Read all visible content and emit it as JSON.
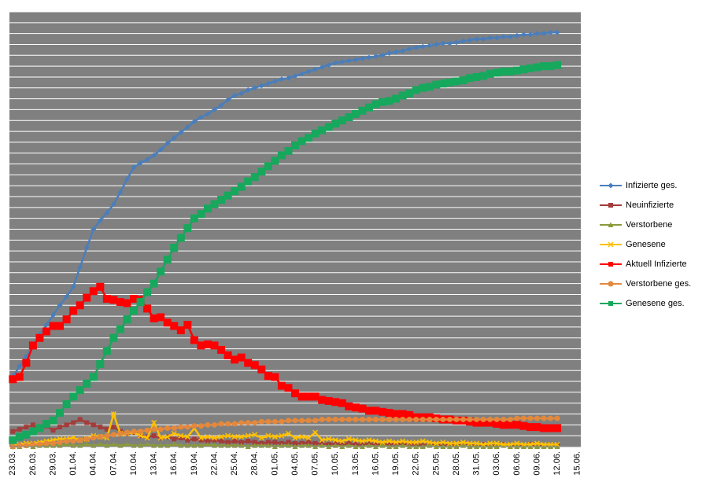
{
  "chart_data": {
    "type": "line",
    "categories": [
      "23.03.",
      null,
      null,
      "26.03.",
      null,
      null,
      "29.03.",
      null,
      null,
      "01.04.",
      null,
      null,
      "04.04.",
      null,
      null,
      "07.04.",
      null,
      null,
      "10.04.",
      null,
      null,
      "13.04.",
      null,
      null,
      "16.04.",
      null,
      null,
      "19.04.",
      null,
      null,
      "22.04.",
      null,
      null,
      "25.04.",
      null,
      null,
      "28.04.",
      null,
      null,
      "01.05.",
      null,
      null,
      "04.05.",
      null,
      null,
      "07.05.",
      null,
      null,
      "10.05.",
      null,
      null,
      "13.05.",
      null,
      null,
      "16.05.",
      null,
      null,
      "19.05.",
      null,
      null,
      "22.05.",
      null,
      null,
      "25.05.",
      null,
      null,
      "28.05.",
      null,
      null,
      "31.05.",
      null,
      null,
      "03.06.",
      null,
      null,
      "06.06.",
      null,
      null,
      "09.06.",
      null,
      null,
      "12.06.",
      null,
      null,
      "15.06."
    ],
    "series": [
      {
        "name": "Infizierte ges.",
        "color": "#4a7ebb",
        "marker": "diamond",
        "values": [
          64,
          74,
          83,
          93,
          103,
          112,
          121,
          130,
          138,
          147,
          165,
          183,
          200,
          208,
          215,
          223,
          234,
          246,
          257,
          261,
          264,
          268,
          273,
          279,
          284,
          289,
          294,
          299,
          303,
          306,
          310,
          314,
          319,
          323,
          325,
          328,
          330,
          332,
          334,
          336,
          338,
          339,
          341,
          343,
          345,
          347,
          349,
          351,
          353,
          354,
          355,
          356,
          357,
          358,
          359,
          360,
          362,
          363,
          364,
          366,
          367,
          368,
          369,
          370,
          371,
          371,
          372,
          373,
          374,
          375,
          375,
          376,
          376,
          377,
          377,
          378,
          379,
          379,
          380,
          380,
          381,
          381,
          null,
          null,
          null
        ]
      },
      {
        "name": "Neuinfizierte",
        "color": "#a33c3a",
        "marker": "square",
        "values": [
          14,
          16,
          18,
          20,
          17,
          19,
          15,
          18,
          20,
          22,
          25,
          22,
          20,
          18,
          16,
          18,
          14,
          12,
          13,
          10,
          9,
          10,
          8,
          9,
          7,
          8,
          6,
          7,
          6,
          5,
          6,
          5,
          4,
          5,
          4,
          5,
          4,
          3,
          4,
          4,
          3,
          4,
          3,
          3,
          4,
          3,
          3,
          2,
          3,
          2,
          3,
          2,
          2,
          3,
          2,
          2,
          2,
          3,
          2,
          2,
          2,
          1,
          2,
          2,
          1,
          2,
          1,
          2,
          1,
          1,
          2,
          1,
          1,
          2,
          1,
          1,
          1,
          2,
          1,
          1,
          1,
          1,
          null,
          null,
          null
        ]
      },
      {
        "name": "Verstorbene",
        "color": "#8a9a3a",
        "marker": "triangle",
        "values": [
          0,
          0,
          1,
          0,
          1,
          1,
          1,
          1,
          2,
          1,
          1,
          2,
          1,
          2,
          1,
          2,
          1,
          2,
          1,
          1,
          2,
          1,
          1,
          1,
          2,
          1,
          1,
          1,
          1,
          2,
          1,
          1,
          1,
          1,
          1,
          0,
          1,
          1,
          1,
          0,
          1,
          1,
          0,
          1,
          1,
          0,
          1,
          0,
          1,
          0,
          1,
          0,
          0,
          1,
          0,
          1,
          0,
          0,
          1,
          0,
          0,
          0,
          1,
          0,
          0,
          0,
          0,
          1,
          0,
          0,
          0,
          0,
          0,
          1,
          0,
          0,
          0,
          0,
          0,
          0,
          0,
          0,
          null,
          null,
          null
        ]
      },
      {
        "name": "Genesene",
        "color": "#ffc000",
        "marker": "x",
        "values": [
          1,
          2,
          3,
          3,
          4,
          5,
          6,
          7,
          7,
          8,
          6,
          7,
          10,
          9,
          8,
          30,
          12,
          12,
          13,
          10,
          8,
          22,
          8,
          9,
          12,
          10,
          9,
          17,
          8,
          9,
          8,
          9,
          10,
          9,
          9,
          10,
          11,
          8,
          10,
          9,
          10,
          12,
          8,
          9,
          8,
          13,
          6,
          7,
          6,
          5,
          7,
          6,
          5,
          6,
          5,
          4,
          5,
          4,
          5,
          4,
          4,
          5,
          4,
          3,
          4,
          3,
          3,
          4,
          3,
          3,
          2,
          3,
          3,
          2,
          2,
          3,
          2,
          2,
          3,
          2,
          2,
          2,
          null,
          null,
          null
        ]
      },
      {
        "name": "Aktuell Infizierte",
        "color": "#ff0000",
        "marker": "bigsquare",
        "values": [
          62,
          64,
          77,
          93,
          100,
          106,
          111,
          111,
          117,
          125,
          130,
          137,
          143,
          147,
          136,
          135,
          133,
          132,
          136,
          135,
          127,
          118,
          119,
          114,
          111,
          107,
          112,
          98,
          93,
          94,
          93,
          89,
          84,
          80,
          82,
          77,
          75,
          71,
          65,
          64,
          56,
          54,
          49,
          46,
          46,
          46,
          43,
          42,
          41,
          40,
          37,
          36,
          35,
          33,
          33,
          32,
          31,
          30,
          30,
          29,
          27,
          27,
          27,
          26,
          25,
          25,
          24,
          24,
          23,
          22,
          22,
          22,
          21,
          20,
          20,
          20,
          19,
          18,
          18,
          17,
          17,
          17,
          null,
          null,
          null
        ]
      },
      {
        "name": "Verstorbene ges.",
        "color": "#e3883c",
        "marker": "circle",
        "values": [
          0,
          1,
          1,
          2,
          2,
          3,
          3,
          4,
          5,
          5,
          6,
          7,
          8,
          9,
          10,
          11,
          12,
          13,
          14,
          14,
          15,
          16,
          16,
          17,
          17,
          18,
          18,
          19,
          19,
          20,
          20,
          21,
          21,
          21,
          22,
          22,
          22,
          23,
          23,
          23,
          23,
          24,
          24,
          24,
          24,
          24,
          25,
          25,
          25,
          25,
          25,
          25,
          25,
          25,
          25,
          25,
          25,
          25,
          25,
          25,
          25,
          25,
          25,
          25,
          25,
          25,
          25,
          25,
          25,
          25,
          25,
          25,
          25,
          25,
          25,
          26,
          26,
          26,
          26,
          26,
          26,
          26,
          null,
          null,
          null
        ]
      },
      {
        "name": "Genesene ges.",
        "color": "#16a85c",
        "marker": "bigsquare",
        "values": [
          6,
          9,
          11,
          14,
          17,
          21,
          24,
          31,
          39,
          46,
          52,
          58,
          64,
          76,
          88,
          100,
          108,
          117,
          125,
          133,
          142,
          150,
          161,
          172,
          183,
          192,
          201,
          210,
          214,
          219,
          223,
          227,
          231,
          235,
          239,
          244,
          248,
          253,
          258,
          263,
          268,
          272,
          277,
          281,
          284,
          288,
          291,
          294,
          297,
          300,
          303,
          306,
          309,
          312,
          315,
          317,
          318,
          320,
          323,
          325,
          328,
          330,
          331,
          333,
          334,
          335,
          336,
          337,
          339,
          340,
          341,
          343,
          344,
          345,
          345,
          346,
          347,
          348,
          349,
          350,
          350,
          351,
          null,
          null,
          null
        ]
      }
    ],
    "ylim": [
      0,
      400
    ],
    "yticks": [
      0,
      10,
      20,
      30,
      40,
      50,
      60,
      70,
      80,
      90,
      100,
      110,
      120,
      130,
      140,
      150,
      160,
      170,
      180,
      190,
      200,
      210,
      220,
      230,
      240,
      250,
      260,
      270,
      280,
      290,
      300,
      310,
      320,
      330,
      340,
      350,
      360,
      370,
      380,
      390,
      400
    ],
    "show_ytick_labels": false,
    "grid": true,
    "legend": "right"
  }
}
